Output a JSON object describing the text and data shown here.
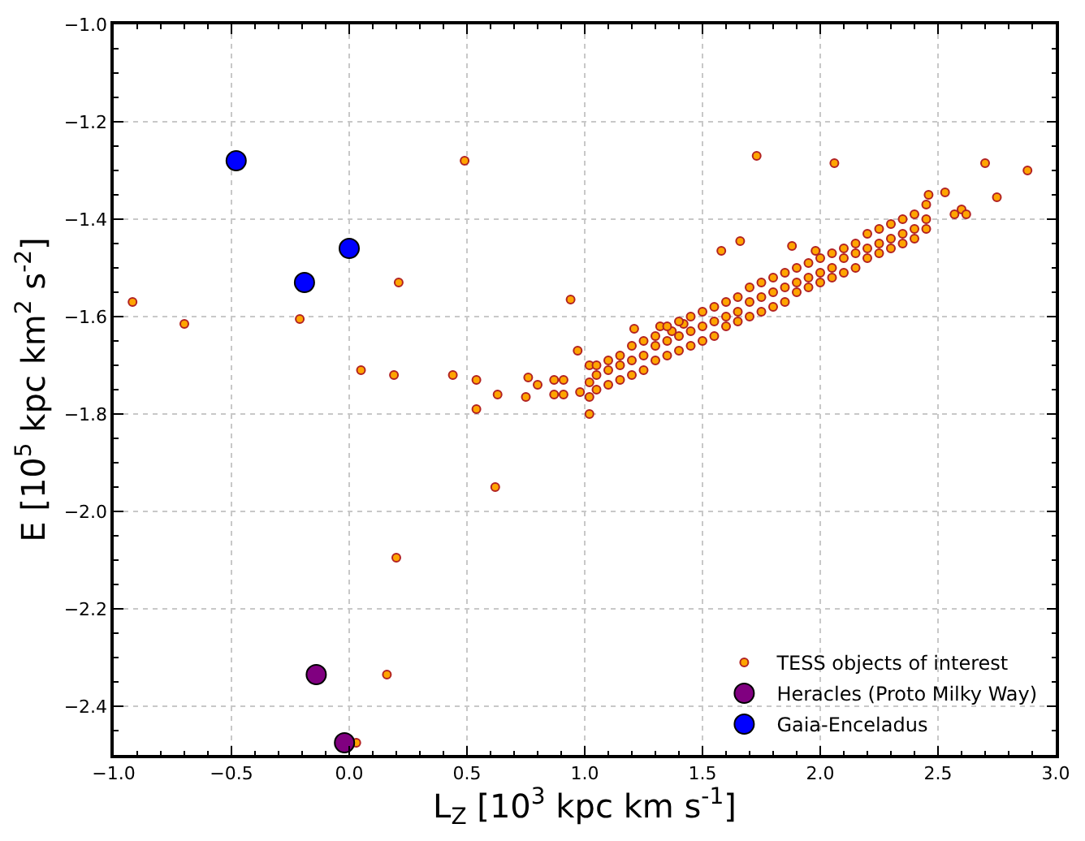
{
  "chart_data": {
    "type": "scatter",
    "xlabel": "L$_{Z}$ [10$^{3}$ kpc km s$^{-1}$]",
    "ylabel": "E [10$^{5}$ kpc km$^{2}$ s$^{-2}$]",
    "xlim": [
      -1.0,
      3.0
    ],
    "xticks": [
      {
        "value": -1.0,
        "label": "−1.0"
      },
      {
        "value": -0.5,
        "label": "−0.5"
      },
      {
        "value": 0.0,
        "label": "0.0"
      },
      {
        "value": 0.5,
        "label": "0.5"
      },
      {
        "value": 1.0,
        "label": "1.0"
      },
      {
        "value": 1.5,
        "label": "1.5"
      },
      {
        "value": 2.0,
        "label": "2.0"
      },
      {
        "value": 2.5,
        "label": "2.5"
      },
      {
        "value": 3.0,
        "label": "3.0"
      }
    ],
    "ylim": [
      -2.5,
      -1.0
    ],
    "yticks": [
      {
        "value": -1.0,
        "label": "−1.0"
      },
      {
        "value": -1.2,
        "label": "−1.2"
      },
      {
        "value": -1.4,
        "label": "−1.4"
      },
      {
        "value": -1.6,
        "label": "−1.6"
      },
      {
        "value": -1.8,
        "label": "−1.8"
      },
      {
        "value": -2.0,
        "label": "−2.0"
      },
      {
        "value": -2.2,
        "label": "−2.2"
      },
      {
        "value": -2.4,
        "label": "−2.4"
      }
    ],
    "grid": true,
    "legend": "bottom right",
    "marker": "circle",
    "series": [
      {
        "name": "TESS objects of interest",
        "color": "#ffa500",
        "x": [
          -0.92,
          -0.7,
          -0.21,
          0.21,
          0.05,
          0.19,
          0.49,
          0.44,
          0.54,
          0.54,
          0.63,
          0.62,
          0.75,
          0.76,
          0.8,
          0.87,
          0.87,
          0.91,
          0.91,
          0.94,
          0.97,
          0.98,
          1.02,
          1.02,
          1.02,
          1.02,
          0.2,
          0.16,
          0.03,
          1.73,
          2.06,
          2.7,
          2.88,
          2.75,
          2.6,
          2.57,
          2.62,
          2.53,
          2.46,
          2.45,
          1.66,
          1.58,
          1.88,
          1.98,
          1.21,
          1.32,
          1.37,
          1.42,
          1.05,
          1.05,
          1.05,
          1.1,
          1.1,
          1.1,
          1.15,
          1.15,
          1.15,
          1.2,
          1.2,
          1.2,
          1.25,
          1.25,
          1.25,
          1.3,
          1.3,
          1.3,
          1.35,
          1.35,
          1.35,
          1.4,
          1.4,
          1.4,
          1.45,
          1.45,
          1.45,
          1.5,
          1.5,
          1.5,
          1.55,
          1.55,
          1.55,
          1.6,
          1.6,
          1.6,
          1.65,
          1.65,
          1.65,
          1.7,
          1.7,
          1.7,
          1.75,
          1.75,
          1.75,
          1.8,
          1.8,
          1.8,
          1.85,
          1.85,
          1.85,
          1.9,
          1.9,
          1.9,
          1.95,
          1.95,
          1.95,
          2.0,
          2.0,
          2.0,
          2.05,
          2.05,
          2.05,
          2.1,
          2.1,
          2.1,
          2.15,
          2.15,
          2.15,
          2.2,
          2.2,
          2.2,
          2.25,
          2.25,
          2.25,
          2.3,
          2.3,
          2.3,
          2.35,
          2.35,
          2.35,
          2.4,
          2.4,
          2.4,
          2.45,
          2.45
        ],
        "values": [
          -1.57,
          -1.615,
          -1.605,
          -1.53,
          -1.71,
          -1.72,
          -1.28,
          -1.72,
          -1.73,
          -1.79,
          -1.76,
          -1.95,
          -1.765,
          -1.725,
          -1.74,
          -1.73,
          -1.76,
          -1.73,
          -1.76,
          -1.565,
          -1.67,
          -1.755,
          -1.7,
          -1.735,
          -1.8,
          -1.765,
          -2.095,
          -2.335,
          -2.475,
          -1.27,
          -1.285,
          -1.285,
          -1.3,
          -1.355,
          -1.38,
          -1.39,
          -1.39,
          -1.345,
          -1.35,
          -1.37,
          -1.445,
          -1.465,
          -1.455,
          -1.465,
          -1.625,
          -1.62,
          -1.63,
          -1.615,
          -1.75,
          -1.72,
          -1.7,
          -1.74,
          -1.71,
          -1.69,
          -1.73,
          -1.7,
          -1.68,
          -1.72,
          -1.69,
          -1.66,
          -1.71,
          -1.68,
          -1.65,
          -1.69,
          -1.66,
          -1.64,
          -1.68,
          -1.65,
          -1.62,
          -1.67,
          -1.64,
          -1.61,
          -1.66,
          -1.63,
          -1.6,
          -1.65,
          -1.62,
          -1.59,
          -1.64,
          -1.61,
          -1.58,
          -1.62,
          -1.6,
          -1.57,
          -1.61,
          -1.59,
          -1.56,
          -1.6,
          -1.57,
          -1.54,
          -1.59,
          -1.56,
          -1.53,
          -1.58,
          -1.55,
          -1.52,
          -1.57,
          -1.54,
          -1.51,
          -1.55,
          -1.53,
          -1.5,
          -1.54,
          -1.52,
          -1.49,
          -1.53,
          -1.51,
          -1.48,
          -1.52,
          -1.5,
          -1.47,
          -1.51,
          -1.48,
          -1.46,
          -1.5,
          -1.47,
          -1.45,
          -1.48,
          -1.46,
          -1.43,
          -1.47,
          -1.45,
          -1.42,
          -1.46,
          -1.44,
          -1.41,
          -1.45,
          -1.43,
          -1.4,
          -1.44,
          -1.42,
          -1.39,
          -1.42,
          -1.4
        ]
      },
      {
        "name": "Heracles (Proto Milky Way)",
        "color": "#800080",
        "x": [
          -0.14,
          -0.02
        ],
        "values": [
          -2.335,
          -2.475
        ]
      },
      {
        "name": "Gaia-Enceladus",
        "color": "#0000ff",
        "x": [
          -0.48,
          -0.19,
          0.0
        ],
        "values": [
          -1.28,
          -1.53,
          -1.46
        ]
      }
    ]
  }
}
